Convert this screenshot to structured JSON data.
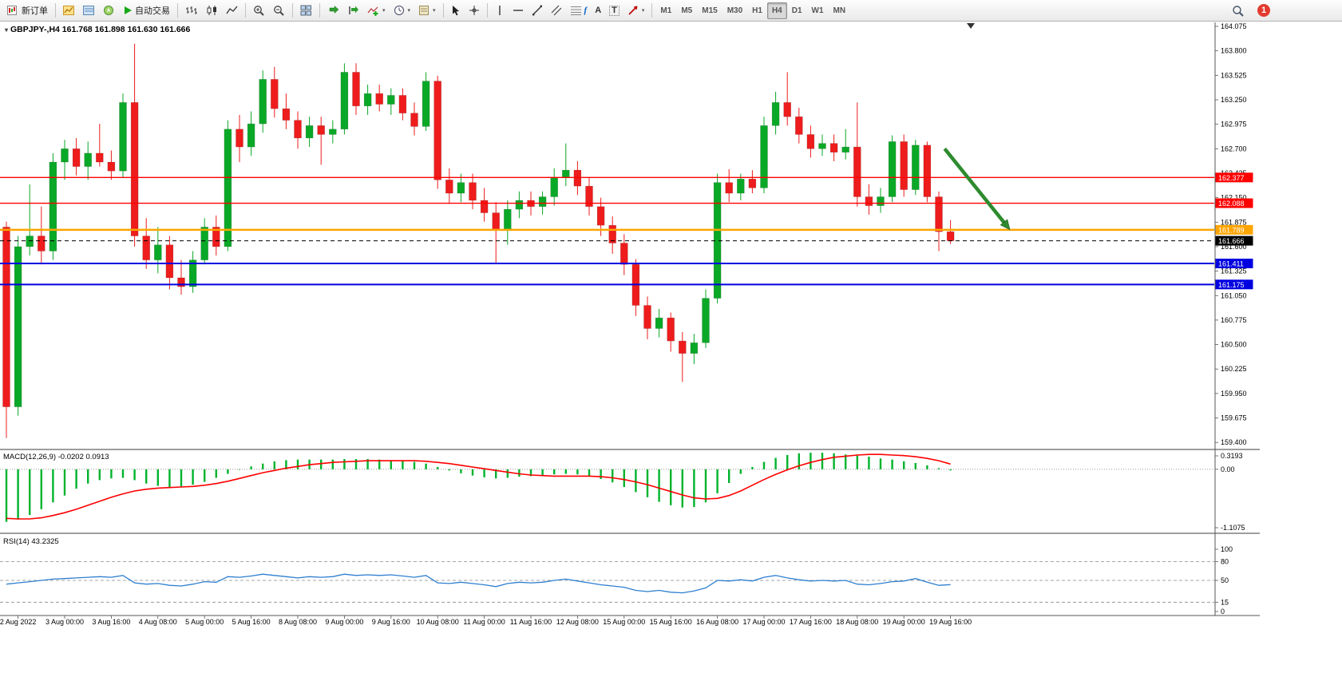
{
  "window": {
    "symbol_info": "GBPJPY-,H4 161.768 161.898 161.630 161.666"
  },
  "toolbar": {
    "new_order_label": "新订单",
    "autotrade_label": "自动交易",
    "notification_count": "1",
    "glyphs": {
      "fibo": "f",
      "text": "A",
      "label": "T"
    },
    "timeframes": [
      {
        "label": "M1",
        "active": false
      },
      {
        "label": "M5",
        "active": false
      },
      {
        "label": "M15",
        "active": false
      },
      {
        "label": "M30",
        "active": false
      },
      {
        "label": "H1",
        "active": false
      },
      {
        "label": "H4",
        "active": true
      },
      {
        "label": "D1",
        "active": false
      },
      {
        "label": "W1",
        "active": false
      },
      {
        "label": "MN",
        "active": false
      }
    ]
  },
  "colors": {
    "bull": "#0aa827",
    "bear": "#ee1c1c",
    "macd_hist": "#00b32c",
    "macd_signal": "#ff0000",
    "rsi": "#2e7fd0",
    "arrow": "#2e8b2e",
    "axis_text": "#000000"
  },
  "chart_data": {
    "type": "candlestick",
    "symbol": "GBPJPY-",
    "period": "H4",
    "ohlc_display": {
      "open": "161.768",
      "high": "161.898",
      "low": "161.630",
      "close": "161.666"
    },
    "price_axis": {
      "min": 159.33,
      "max": 164.12,
      "labels": [
        "164.075",
        "163.800",
        "163.525",
        "163.250",
        "162.975",
        "162.700",
        "162.425",
        "162.150",
        "161.875",
        "161.600",
        "161.325",
        "161.050",
        "160.775",
        "160.500",
        "160.225",
        "159.950",
        "159.675",
        "159.400"
      ]
    },
    "time_labels": [
      {
        "i": 1,
        "t": "2 Aug 2022"
      },
      {
        "i": 5,
        "t": "3 Aug 00:00"
      },
      {
        "i": 9,
        "t": "3 Aug 16:00"
      },
      {
        "i": 13,
        "t": "4 Aug 08:00"
      },
      {
        "i": 17,
        "t": "5 Aug 00:00"
      },
      {
        "i": 21,
        "t": "5 Aug 16:00"
      },
      {
        "i": 25,
        "t": "8 Aug 08:00"
      },
      {
        "i": 29,
        "t": "9 Aug 00:00"
      },
      {
        "i": 33,
        "t": "9 Aug 16:00"
      },
      {
        "i": 37,
        "t": "10 Aug 08:00"
      },
      {
        "i": 41,
        "t": "11 Aug 00:00"
      },
      {
        "i": 45,
        "t": "11 Aug 16:00"
      },
      {
        "i": 49,
        "t": "12 Aug 08:00"
      },
      {
        "i": 53,
        "t": "15 Aug 00:00"
      },
      {
        "i": 57,
        "t": "15 Aug 16:00"
      },
      {
        "i": 61,
        "t": "16 Aug 08:00"
      },
      {
        "i": 65,
        "t": "17 Aug 00:00"
      },
      {
        "i": 69,
        "t": "17 Aug 16:00"
      },
      {
        "i": 73,
        "t": "18 Aug 08:00"
      },
      {
        "i": 77,
        "t": "19 Aug 00:00"
      },
      {
        "i": 81,
        "t": "19 Aug 16:00"
      }
    ],
    "candles": [
      [
        161.82,
        161.88,
        159.45,
        159.8
      ],
      [
        159.8,
        161.72,
        159.7,
        161.6
      ],
      [
        161.6,
        162.3,
        161.5,
        161.72
      ],
      [
        161.72,
        162.05,
        161.4,
        161.55
      ],
      [
        161.55,
        162.65,
        161.45,
        162.55
      ],
      [
        162.55,
        162.8,
        162.35,
        162.7
      ],
      [
        162.7,
        162.82,
        162.4,
        162.5
      ],
      [
        162.5,
        162.78,
        162.35,
        162.65
      ],
      [
        162.65,
        162.98,
        162.5,
        162.55
      ],
      [
        162.55,
        162.68,
        162.35,
        162.45
      ],
      [
        162.45,
        163.32,
        162.38,
        163.22
      ],
      [
        163.22,
        163.88,
        161.6,
        161.72
      ],
      [
        161.72,
        161.92,
        161.35,
        161.45
      ],
      [
        161.45,
        161.82,
        161.3,
        161.62
      ],
      [
        161.62,
        161.72,
        161.12,
        161.25
      ],
      [
        161.25,
        161.45,
        161.06,
        161.15
      ],
      [
        161.15,
        161.55,
        161.08,
        161.45
      ],
      [
        161.45,
        161.92,
        161.4,
        161.82
      ],
      [
        161.82,
        161.95,
        161.5,
        161.6
      ],
      [
        161.6,
        163.02,
        161.55,
        162.92
      ],
      [
        162.92,
        163.08,
        162.55,
        162.72
      ],
      [
        162.72,
        163.12,
        162.62,
        162.98
      ],
      [
        162.98,
        163.58,
        162.88,
        163.48
      ],
      [
        163.48,
        163.62,
        163.05,
        163.15
      ],
      [
        163.15,
        163.32,
        162.92,
        163.02
      ],
      [
        163.02,
        163.12,
        162.7,
        162.82
      ],
      [
        162.82,
        163.06,
        162.72,
        162.96
      ],
      [
        162.96,
        163.06,
        162.52,
        162.86
      ],
      [
        162.86,
        163.02,
        162.76,
        162.92
      ],
      [
        162.92,
        163.66,
        162.86,
        163.56
      ],
      [
        163.56,
        163.66,
        163.08,
        163.18
      ],
      [
        163.18,
        163.42,
        163.08,
        163.32
      ],
      [
        163.32,
        163.42,
        163.12,
        163.2
      ],
      [
        163.2,
        163.38,
        163.08,
        163.3
      ],
      [
        163.3,
        163.38,
        163.02,
        163.1
      ],
      [
        163.1,
        163.22,
        162.85,
        162.95
      ],
      [
        162.95,
        163.56,
        162.9,
        163.46
      ],
      [
        163.46,
        163.52,
        162.25,
        162.35
      ],
      [
        162.35,
        162.48,
        162.08,
        162.2
      ],
      [
        162.2,
        162.42,
        162.1,
        162.32
      ],
      [
        162.32,
        162.42,
        162.02,
        162.12
      ],
      [
        162.12,
        162.26,
        161.88,
        161.98
      ],
      [
        161.98,
        162.1,
        161.42,
        161.78
      ],
      [
        161.78,
        162.12,
        161.62,
        162.02
      ],
      [
        162.02,
        162.22,
        161.92,
        162.12
      ],
      [
        162.12,
        162.22,
        161.95,
        162.05
      ],
      [
        162.05,
        162.22,
        161.96,
        162.16
      ],
      [
        162.16,
        162.48,
        162.06,
        162.38
      ],
      [
        162.38,
        162.76,
        162.28,
        162.46
      ],
      [
        162.46,
        162.56,
        162.18,
        162.28
      ],
      [
        162.28,
        162.38,
        161.95,
        162.05
      ],
      [
        162.05,
        162.15,
        161.72,
        161.84
      ],
      [
        161.84,
        161.94,
        161.52,
        161.64
      ],
      [
        161.64,
        161.74,
        161.28,
        161.4
      ],
      [
        161.4,
        161.46,
        160.82,
        160.94
      ],
      [
        160.94,
        161.04,
        160.56,
        160.68
      ],
      [
        160.68,
        160.9,
        160.58,
        160.8
      ],
      [
        160.8,
        160.86,
        160.42,
        160.54
      ],
      [
        160.54,
        160.64,
        160.08,
        160.4
      ],
      [
        160.4,
        160.62,
        160.28,
        160.52
      ],
      [
        160.52,
        161.12,
        160.46,
        161.02
      ],
      [
        161.02,
        162.42,
        160.96,
        162.32
      ],
      [
        162.32,
        162.47,
        162.1,
        162.2
      ],
      [
        162.2,
        162.42,
        162.12,
        162.36
      ],
      [
        162.36,
        162.46,
        162.2,
        162.26
      ],
      [
        162.26,
        163.06,
        162.2,
        162.96
      ],
      [
        162.96,
        163.34,
        162.86,
        163.22
      ],
      [
        163.22,
        163.56,
        162.96,
        163.06
      ],
      [
        163.06,
        163.16,
        162.76,
        162.86
      ],
      [
        162.86,
        162.96,
        162.6,
        162.7
      ],
      [
        162.7,
        162.86,
        162.62,
        162.76
      ],
      [
        162.76,
        162.86,
        162.56,
        162.66
      ],
      [
        162.66,
        162.92,
        162.58,
        162.72
      ],
      [
        162.72,
        163.22,
        162.05,
        162.16
      ],
      [
        162.16,
        162.3,
        161.96,
        162.06
      ],
      [
        162.06,
        162.26,
        161.98,
        162.16
      ],
      [
        162.16,
        162.85,
        162.1,
        162.78
      ],
      [
        162.78,
        162.86,
        162.16,
        162.24
      ],
      [
        162.24,
        162.8,
        162.18,
        162.74
      ],
      [
        162.74,
        162.78,
        162.1,
        162.16
      ],
      [
        162.16,
        162.22,
        161.55,
        161.768
      ],
      [
        161.768,
        161.898,
        161.63,
        161.666
      ]
    ],
    "hlines": [
      {
        "price": 162.377,
        "label": "162.377",
        "color": "#ff0000",
        "width": 1.4,
        "style": "solid"
      },
      {
        "price": 162.088,
        "label": "162.088",
        "color": "#ff0000",
        "width": 1.4,
        "style": "solid"
      },
      {
        "price": 161.789,
        "label": "161.789",
        "color": "#ffa500",
        "width": 2.4,
        "style": "solid"
      },
      {
        "price": 161.666,
        "label": "161.666",
        "color": "#000000",
        "width": 1,
        "style": "dash"
      },
      {
        "price": 161.411,
        "label": "161.411",
        "color": "#0000e0",
        "width": 2,
        "style": "solid"
      },
      {
        "price": 161.175,
        "label": "161.175",
        "color": "#0000e0",
        "width": 2,
        "style": "solid"
      }
    ],
    "arrow": {
      "from": {
        "index": 80.5,
        "price": 162.7
      },
      "to": {
        "index": 86.1,
        "price": 161.79
      }
    },
    "macd": {
      "label": "MACD(12,26,9) -0.0202 0.0913",
      "max": 0.3193,
      "min": -1.1075,
      "axis": [
        "0.3193",
        "0.00",
        "-1.1075"
      ],
      "hist": [
        -0.92,
        -0.88,
        -0.8,
        -0.7,
        -0.58,
        -0.46,
        -0.34,
        -0.25,
        -0.19,
        -0.16,
        -0.15,
        -0.19,
        -0.25,
        -0.29,
        -0.31,
        -0.3,
        -0.27,
        -0.22,
        -0.15,
        -0.08,
        -0.01,
        0.05,
        0.1,
        0.14,
        0.16,
        0.17,
        0.17,
        0.17,
        0.17,
        0.18,
        0.18,
        0.18,
        0.17,
        0.16,
        0.15,
        0.13,
        0.1,
        0.04,
        -0.02,
        -0.07,
        -0.11,
        -0.14,
        -0.16,
        -0.15,
        -0.13,
        -0.12,
        -0.11,
        -0.09,
        -0.08,
        -0.09,
        -0.12,
        -0.17,
        -0.23,
        -0.31,
        -0.4,
        -0.49,
        -0.57,
        -0.63,
        -0.67,
        -0.66,
        -0.58,
        -0.42,
        -0.24,
        -0.08,
        0.04,
        0.13,
        0.2,
        0.25,
        0.28,
        0.29,
        0.29,
        0.28,
        0.26,
        0.24,
        0.22,
        0.19,
        0.17,
        0.14,
        0.11,
        0.07,
        0.02,
        -0.0202
      ],
      "signal": [
        -0.86,
        -0.87,
        -0.87,
        -0.85,
        -0.81,
        -0.76,
        -0.7,
        -0.63,
        -0.56,
        -0.49,
        -0.43,
        -0.38,
        -0.35,
        -0.33,
        -0.32,
        -0.31,
        -0.3,
        -0.28,
        -0.25,
        -0.21,
        -0.16,
        -0.11,
        -0.06,
        -0.02,
        0.02,
        0.05,
        0.08,
        0.1,
        0.12,
        0.13,
        0.14,
        0.15,
        0.15,
        0.15,
        0.15,
        0.15,
        0.14,
        0.12,
        0.1,
        0.07,
        0.04,
        0.01,
        -0.02,
        -0.05,
        -0.08,
        -0.1,
        -0.11,
        -0.12,
        -0.12,
        -0.12,
        -0.12,
        -0.13,
        -0.15,
        -0.18,
        -0.22,
        -0.27,
        -0.33,
        -0.39,
        -0.45,
        -0.5,
        -0.52,
        -0.51,
        -0.46,
        -0.38,
        -0.28,
        -0.18,
        -0.09,
        -0.01,
        0.06,
        0.12,
        0.17,
        0.21,
        0.23,
        0.25,
        0.26,
        0.26,
        0.25,
        0.24,
        0.22,
        0.19,
        0.15,
        0.0913
      ]
    },
    "rsi": {
      "label": "RSI(14) 43.2325",
      "axis": [
        "100",
        "80",
        "50",
        "15",
        "0"
      ],
      "levels": [
        80,
        50,
        15
      ],
      "values": [
        44,
        46,
        48,
        50,
        52,
        53,
        54,
        55,
        56,
        55,
        58,
        46,
        44,
        45,
        42,
        41,
        44,
        48,
        47,
        56,
        55,
        57,
        60,
        58,
        56,
        54,
        56,
        55,
        56,
        60,
        58,
        59,
        58,
        59,
        57,
        55,
        58,
        46,
        45,
        47,
        45,
        43,
        40,
        45,
        47,
        46,
        47,
        50,
        52,
        49,
        46,
        43,
        41,
        39,
        34,
        32,
        34,
        31,
        30,
        33,
        38,
        50,
        49,
        51,
        49,
        55,
        58,
        54,
        51,
        49,
        50,
        49,
        50,
        44,
        43,
        45,
        48,
        49,
        53,
        47,
        42,
        43.2325
      ]
    }
  }
}
